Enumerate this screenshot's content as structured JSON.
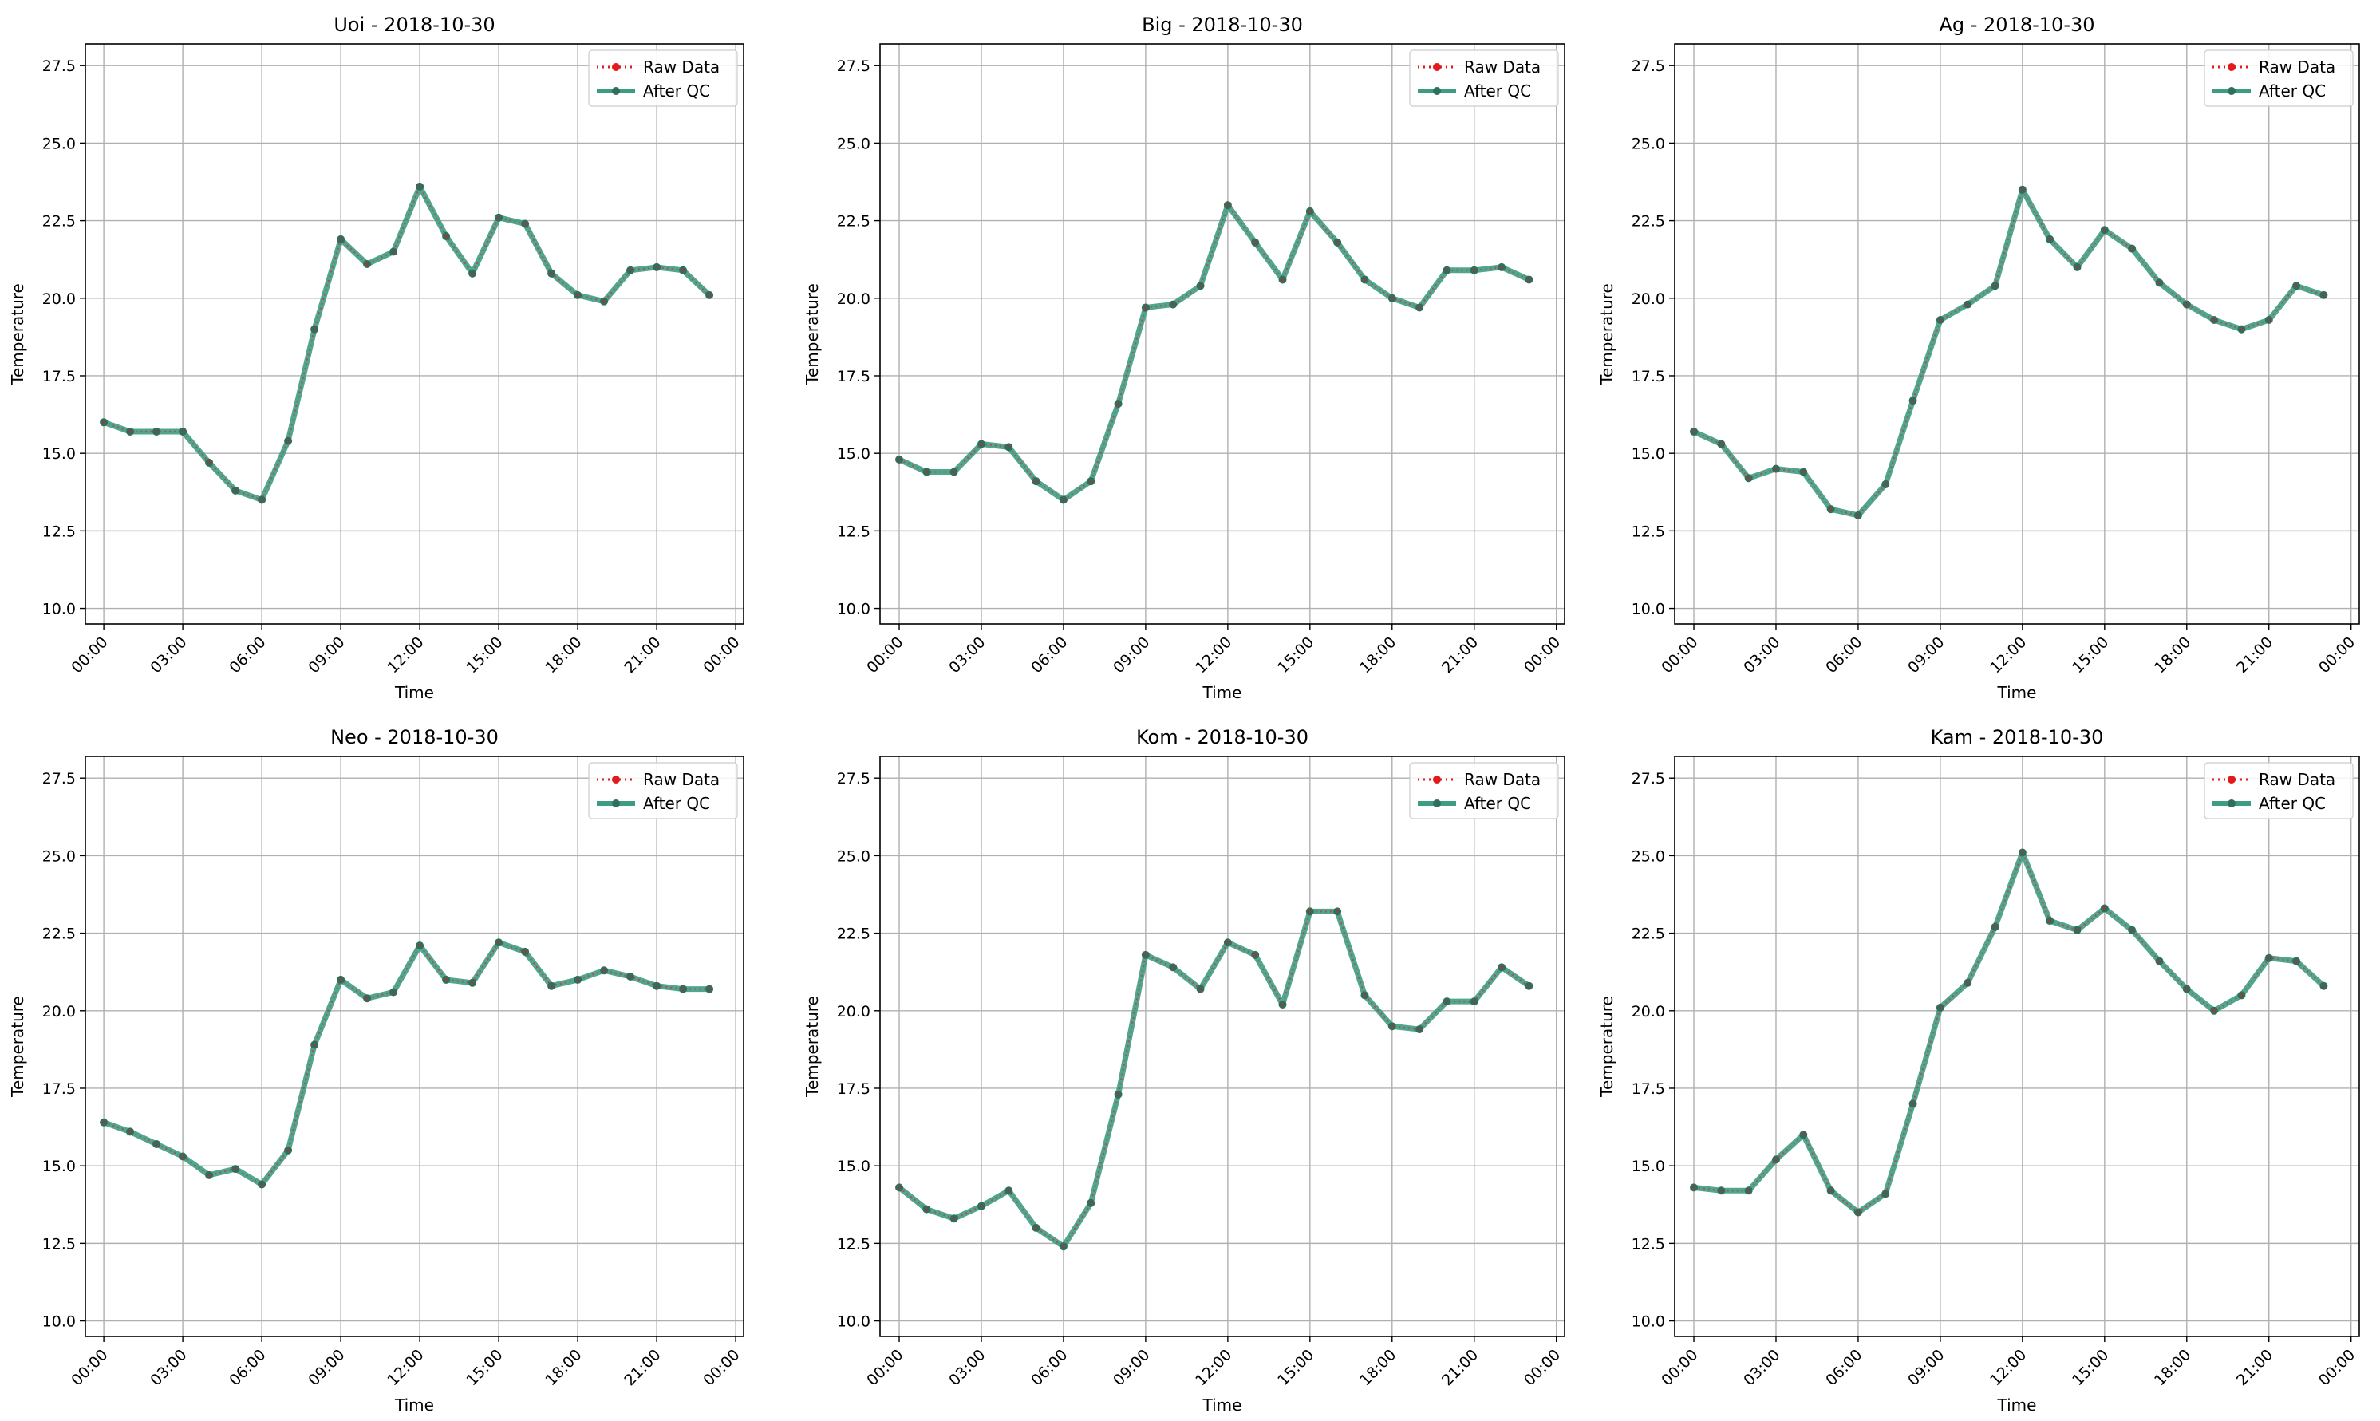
{
  "figure": {
    "x_tick_labels": [
      "00:00",
      "03:00",
      "06:00",
      "09:00",
      "12:00",
      "15:00",
      "18:00",
      "21:00",
      "00:00"
    ],
    "y_ticks": [
      10.0,
      12.5,
      15.0,
      17.5,
      20.0,
      22.5,
      25.0,
      27.5
    ],
    "colors": {
      "raw": "#e31a1c",
      "qc": "#3d9c82",
      "marker": "#2f6f5c",
      "grid": "#b0b0b0"
    }
  },
  "chart_data": [
    {
      "type": "line",
      "title": "Uoi - 2018-10-30",
      "xlabel": "Time",
      "ylabel": "Temperature",
      "ylim": [
        9.5,
        28.2
      ],
      "x": [
        "00:00",
        "01:00",
        "02:00",
        "03:00",
        "04:00",
        "05:00",
        "06:00",
        "07:00",
        "08:00",
        "09:00",
        "10:00",
        "11:00",
        "12:00",
        "13:00",
        "14:00",
        "15:00",
        "16:00",
        "17:00",
        "18:00",
        "19:00",
        "20:00",
        "21:00",
        "22:00",
        "23:00"
      ],
      "grid": true,
      "legend_position": "top-right",
      "series": [
        {
          "name": "Raw Data",
          "values": [
            16.0,
            15.7,
            15.7,
            15.7,
            14.7,
            13.8,
            13.5,
            15.4,
            19.0,
            21.9,
            21.1,
            21.5,
            23.6,
            22.0,
            20.8,
            22.6,
            22.4,
            20.8,
            20.1,
            19.9,
            20.9,
            21.0,
            20.9,
            20.1
          ]
        },
        {
          "name": "After QC",
          "values": [
            16.0,
            15.7,
            15.7,
            15.7,
            14.7,
            13.8,
            13.5,
            15.4,
            19.0,
            21.9,
            21.1,
            21.5,
            23.6,
            22.0,
            20.8,
            22.6,
            22.4,
            20.8,
            20.1,
            19.9,
            20.9,
            21.0,
            20.9,
            20.1
          ]
        }
      ]
    },
    {
      "type": "line",
      "title": "Big - 2018-10-30",
      "xlabel": "Time",
      "ylabel": "Temperature",
      "ylim": [
        9.5,
        28.2
      ],
      "x": [
        "00:00",
        "01:00",
        "02:00",
        "03:00",
        "04:00",
        "05:00",
        "06:00",
        "07:00",
        "08:00",
        "09:00",
        "10:00",
        "11:00",
        "12:00",
        "13:00",
        "14:00",
        "15:00",
        "16:00",
        "17:00",
        "18:00",
        "19:00",
        "20:00",
        "21:00",
        "22:00",
        "23:00"
      ],
      "grid": true,
      "legend_position": "top-right",
      "series": [
        {
          "name": "Raw Data",
          "values": [
            14.8,
            14.4,
            14.4,
            15.3,
            15.2,
            14.1,
            13.5,
            14.1,
            16.6,
            19.7,
            19.8,
            20.4,
            23.0,
            21.8,
            20.6,
            22.8,
            21.8,
            20.6,
            20.0,
            19.7,
            20.9,
            20.9,
            21.0,
            20.6
          ]
        },
        {
          "name": "After QC",
          "values": [
            14.8,
            14.4,
            14.4,
            15.3,
            15.2,
            14.1,
            13.5,
            14.1,
            16.6,
            19.7,
            19.8,
            20.4,
            23.0,
            21.8,
            20.6,
            22.8,
            21.8,
            20.6,
            20.0,
            19.7,
            20.9,
            20.9,
            21.0,
            20.6
          ]
        }
      ]
    },
    {
      "type": "line",
      "title": "Ag - 2018-10-30",
      "xlabel": "Time",
      "ylabel": "Temperature",
      "ylim": [
        9.5,
        28.2
      ],
      "x": [
        "00:00",
        "01:00",
        "02:00",
        "03:00",
        "04:00",
        "05:00",
        "06:00",
        "07:00",
        "08:00",
        "09:00",
        "10:00",
        "11:00",
        "12:00",
        "13:00",
        "14:00",
        "15:00",
        "16:00",
        "17:00",
        "18:00",
        "19:00",
        "20:00",
        "21:00",
        "22:00",
        "23:00"
      ],
      "grid": true,
      "legend_position": "top-right",
      "series": [
        {
          "name": "Raw Data",
          "values": [
            15.7,
            15.3,
            14.2,
            14.5,
            14.4,
            13.2,
            13.0,
            14.0,
            16.7,
            19.3,
            19.8,
            20.4,
            23.5,
            21.9,
            21.0,
            22.2,
            21.6,
            20.5,
            19.8,
            19.3,
            19.0,
            19.3,
            20.4,
            20.1
          ]
        },
        {
          "name": "After QC",
          "values": [
            15.7,
            15.3,
            14.2,
            14.5,
            14.4,
            13.2,
            13.0,
            14.0,
            16.7,
            19.3,
            19.8,
            20.4,
            23.5,
            21.9,
            21.0,
            22.2,
            21.6,
            20.5,
            19.8,
            19.3,
            19.0,
            19.3,
            20.4,
            20.1
          ]
        }
      ]
    },
    {
      "type": "line",
      "title": "Neo - 2018-10-30",
      "xlabel": "Time",
      "ylabel": "Temperature",
      "ylim": [
        9.5,
        28.2
      ],
      "x": [
        "00:00",
        "01:00",
        "02:00",
        "03:00",
        "04:00",
        "05:00",
        "06:00",
        "07:00",
        "08:00",
        "09:00",
        "10:00",
        "11:00",
        "12:00",
        "13:00",
        "14:00",
        "15:00",
        "16:00",
        "17:00",
        "18:00",
        "19:00",
        "20:00",
        "21:00",
        "22:00",
        "23:00"
      ],
      "grid": true,
      "legend_position": "top-right",
      "series": [
        {
          "name": "Raw Data",
          "values": [
            16.4,
            16.1,
            15.7,
            15.3,
            14.7,
            14.9,
            14.4,
            15.5,
            18.9,
            21.0,
            20.4,
            20.6,
            22.1,
            21.0,
            20.9,
            22.2,
            21.9,
            20.8,
            21.0,
            21.3,
            21.1,
            20.8,
            20.7,
            20.7
          ]
        },
        {
          "name": "After QC",
          "values": [
            16.4,
            16.1,
            15.7,
            15.3,
            14.7,
            14.9,
            14.4,
            15.5,
            18.9,
            21.0,
            20.4,
            20.6,
            22.1,
            21.0,
            20.9,
            22.2,
            21.9,
            20.8,
            21.0,
            21.3,
            21.1,
            20.8,
            20.7,
            20.7
          ]
        }
      ]
    },
    {
      "type": "line",
      "title": "Kom - 2018-10-30",
      "xlabel": "Time",
      "ylabel": "Temperature",
      "ylim": [
        9.5,
        28.2
      ],
      "x": [
        "00:00",
        "01:00",
        "02:00",
        "03:00",
        "04:00",
        "05:00",
        "06:00",
        "07:00",
        "08:00",
        "09:00",
        "10:00",
        "11:00",
        "12:00",
        "13:00",
        "14:00",
        "15:00",
        "16:00",
        "17:00",
        "18:00",
        "19:00",
        "20:00",
        "21:00",
        "22:00",
        "23:00"
      ],
      "grid": true,
      "legend_position": "top-right",
      "series": [
        {
          "name": "Raw Data",
          "values": [
            14.3,
            13.6,
            13.3,
            13.7,
            14.2,
            13.0,
            12.4,
            13.8,
            17.3,
            21.8,
            21.4,
            20.7,
            22.2,
            21.8,
            20.2,
            23.2,
            23.2,
            20.5,
            19.5,
            19.4,
            20.3,
            20.3,
            21.4,
            20.8
          ]
        },
        {
          "name": "After QC",
          "values": [
            14.3,
            13.6,
            13.3,
            13.7,
            14.2,
            13.0,
            12.4,
            13.8,
            17.3,
            21.8,
            21.4,
            20.7,
            22.2,
            21.8,
            20.2,
            23.2,
            23.2,
            20.5,
            19.5,
            19.4,
            20.3,
            20.3,
            21.4,
            20.8
          ]
        }
      ]
    },
    {
      "type": "line",
      "title": "Kam - 2018-10-30",
      "xlabel": "Time",
      "ylabel": "Temperature",
      "ylim": [
        9.5,
        28.2
      ],
      "x": [
        "00:00",
        "01:00",
        "02:00",
        "03:00",
        "04:00",
        "05:00",
        "06:00",
        "07:00",
        "08:00",
        "09:00",
        "10:00",
        "11:00",
        "12:00",
        "13:00",
        "14:00",
        "15:00",
        "16:00",
        "17:00",
        "18:00",
        "19:00",
        "20:00",
        "21:00",
        "22:00",
        "23:00"
      ],
      "grid": true,
      "legend_position": "top-right",
      "series": [
        {
          "name": "Raw Data",
          "values": [
            14.3,
            14.2,
            14.2,
            15.2,
            16.0,
            14.2,
            13.5,
            14.1,
            17.0,
            20.1,
            20.9,
            22.7,
            25.1,
            22.9,
            22.6,
            23.3,
            22.6,
            21.6,
            20.7,
            20.0,
            20.5,
            21.7,
            21.6,
            20.8
          ]
        },
        {
          "name": "After QC",
          "values": [
            14.3,
            14.2,
            14.2,
            15.2,
            16.0,
            14.2,
            13.5,
            14.1,
            17.0,
            20.1,
            20.9,
            22.7,
            25.1,
            22.9,
            22.6,
            23.3,
            22.6,
            21.6,
            20.7,
            20.0,
            20.5,
            21.7,
            21.6,
            20.8
          ]
        }
      ]
    }
  ]
}
